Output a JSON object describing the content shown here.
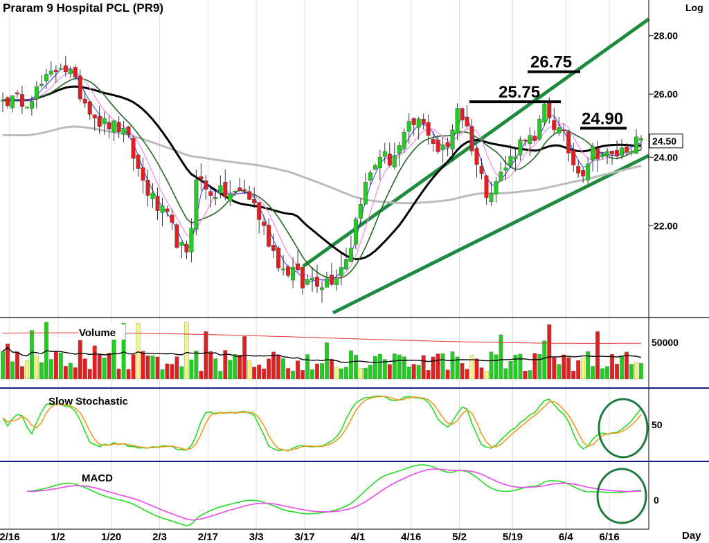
{
  "chart_data": {
    "type": "candlestick",
    "title": "Praram  9  Hospital  PCL  (PR9)",
    "scale_label": "Log",
    "x_unit_label": "Day",
    "date_labels": [
      "2/16",
      "1/2",
      "1/20",
      "2/3",
      "2/17",
      "3/3",
      "3/17",
      "4/1",
      "4/16",
      "5/2",
      "5/19",
      "6/4",
      "6/16"
    ],
    "price_ticks": [
      "28.00",
      "26.00",
      "24.00",
      "22.00"
    ],
    "price_range": [
      19.6,
      29.3
    ],
    "last_price": "24.50",
    "annotations": [
      {
        "label": "26.75",
        "value": 26.75
      },
      {
        "label": "25.75",
        "value": 25.75
      },
      {
        "label": "24.90",
        "value": 24.9
      }
    ],
    "price_anchors": [
      [
        0,
        25.8
      ],
      [
        5,
        25.8
      ],
      [
        8,
        26.3
      ],
      [
        12,
        27.0
      ],
      [
        14,
        26.7
      ],
      [
        16,
        26.0
      ],
      [
        20,
        25.1
      ],
      [
        24,
        24.9
      ],
      [
        26,
        24.5
      ],
      [
        28,
        23.6
      ],
      [
        30,
        23.0
      ],
      [
        32,
        22.5
      ],
      [
        34,
        22.2
      ],
      [
        36,
        21.6
      ],
      [
        38,
        21.1
      ],
      [
        39,
        22.0
      ],
      [
        40,
        23.5
      ],
      [
        42,
        23.0
      ],
      [
        46,
        22.9
      ],
      [
        48,
        22.9
      ],
      [
        50,
        23.0
      ],
      [
        52,
        22.6
      ],
      [
        54,
        21.9
      ],
      [
        56,
        21.3
      ],
      [
        58,
        20.8
      ],
      [
        60,
        20.8
      ],
      [
        62,
        20.4
      ],
      [
        64,
        20.6
      ],
      [
        66,
        20.5
      ],
      [
        68,
        20.6
      ],
      [
        70,
        20.9
      ],
      [
        72,
        21.5
      ],
      [
        74,
        22.8
      ],
      [
        76,
        23.5
      ],
      [
        78,
        24.1
      ],
      [
        80,
        23.9
      ],
      [
        82,
        24.3
      ],
      [
        84,
        24.9
      ],
      [
        86,
        25.1
      ],
      [
        88,
        24.8
      ],
      [
        90,
        24.2
      ],
      [
        92,
        24.3
      ],
      [
        94,
        25.6
      ],
      [
        96,
        24.9
      ],
      [
        98,
        23.8
      ],
      [
        100,
        23.0
      ],
      [
        102,
        23.3
      ],
      [
        104,
        23.7
      ],
      [
        106,
        24.2
      ],
      [
        108,
        24.7
      ],
      [
        110,
        24.4
      ],
      [
        112,
        25.6
      ],
      [
        114,
        25.0
      ],
      [
        116,
        24.6
      ],
      [
        118,
        23.8
      ],
      [
        120,
        23.6
      ],
      [
        122,
        24.2
      ],
      [
        124,
        24.1
      ],
      [
        126,
        24.0
      ],
      [
        128,
        24.2
      ],
      [
        130,
        24.4
      ],
      [
        132,
        24.5
      ]
    ],
    "volume": {
      "label": "Volume",
      "tick": "50000"
    },
    "stochastic": {
      "label": "Slow  Stochastic",
      "tick": "50"
    },
    "macd": {
      "label": "MACD",
      "tick": "0"
    },
    "colors": {
      "up": "#22cc22",
      "down": "#e02020",
      "neutral_volume": "#f5f57a",
      "ma_fast": "#3333ff",
      "ma_pink": "#ee88ee",
      "ma_green": "#226622",
      "ma_black": "#000000",
      "ma_grey": "#bbbbbb",
      "channel": "#1e8c3c",
      "stoch_k": "#22dd22",
      "stoch_d": "#ee9922",
      "macd_line": "#22dd22",
      "macd_signal": "#ee44ee",
      "volume_ma_red": "#e03030",
      "divider": "#1a1a80"
    }
  }
}
